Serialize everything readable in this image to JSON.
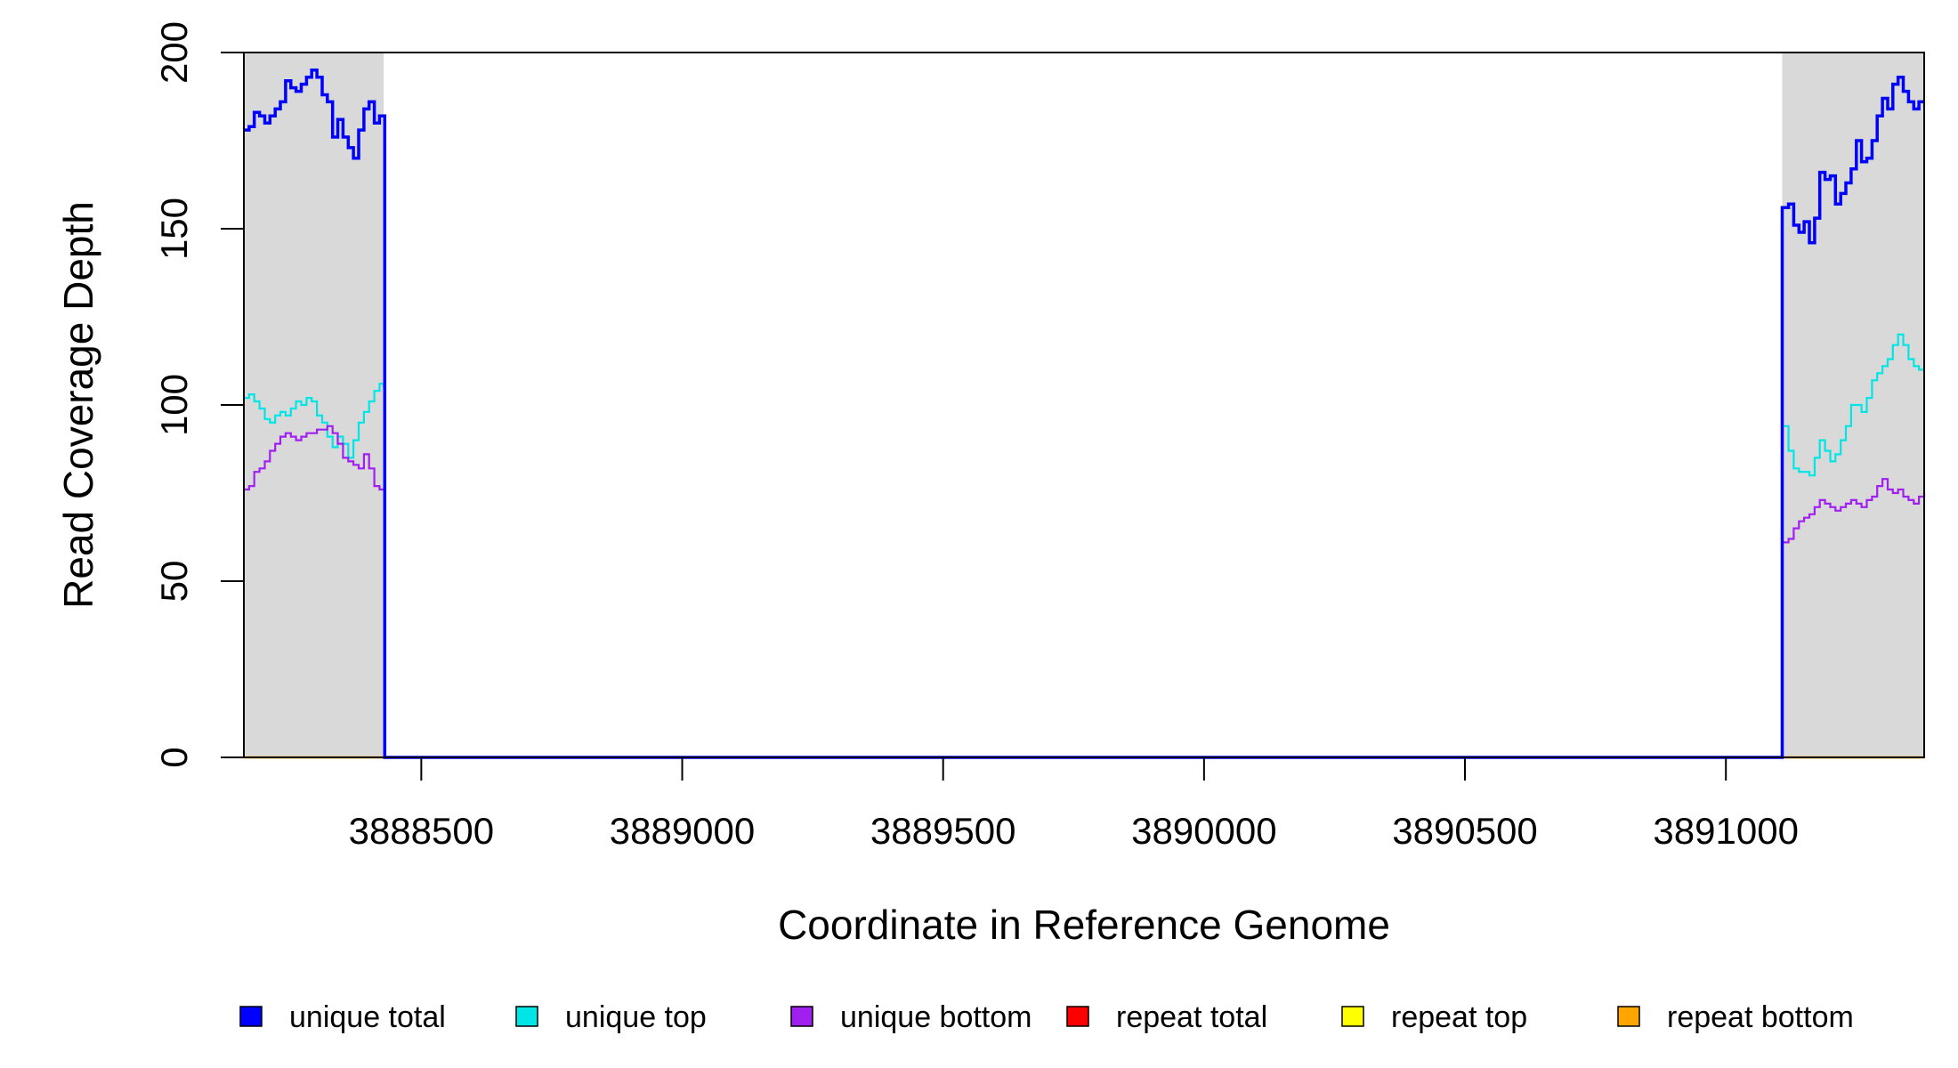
{
  "chart_data": {
    "type": "line",
    "title": "",
    "xlabel": "Coordinate in Reference Genome",
    "ylabel": "Read Coverage Depth",
    "xlim": [
      3888160,
      3891380
    ],
    "ylim": [
      0,
      200
    ],
    "x_ticks": [
      3888500,
      3889000,
      3889500,
      3890000,
      3890500,
      3891000
    ],
    "x_tick_labels": [
      "3888500",
      "3889000",
      "3889500",
      "3890000",
      "3890500",
      "3891000"
    ],
    "y_ticks": [
      0,
      50,
      100,
      150,
      200
    ],
    "y_tick_labels": [
      "0",
      "50",
      "100",
      "150",
      "200"
    ],
    "shaded_regions": [
      [
        3888160,
        3888428
      ],
      [
        3891108,
        3891380
      ]
    ],
    "shade_color": "#d9d9d9",
    "legend_position": "bottom",
    "series": [
      {
        "name": "unique total",
        "color": "#0000ff",
        "points": [
          [
            3888160,
            178
          ],
          [
            3888170,
            179
          ],
          [
            3888180,
            183
          ],
          [
            3888190,
            182
          ],
          [
            3888200,
            180
          ],
          [
            3888210,
            182
          ],
          [
            3888220,
            184
          ],
          [
            3888230,
            186
          ],
          [
            3888240,
            192
          ],
          [
            3888250,
            190
          ],
          [
            3888260,
            189
          ],
          [
            3888270,
            191
          ],
          [
            3888280,
            193
          ],
          [
            3888290,
            195
          ],
          [
            3888300,
            193
          ],
          [
            3888310,
            188
          ],
          [
            3888320,
            186
          ],
          [
            3888330,
            176
          ],
          [
            3888340,
            181
          ],
          [
            3888350,
            176
          ],
          [
            3888360,
            173
          ],
          [
            3888370,
            170
          ],
          [
            3888380,
            178
          ],
          [
            3888390,
            184
          ],
          [
            3888400,
            186
          ],
          [
            3888410,
            180
          ],
          [
            3888420,
            182
          ],
          [
            3888428,
            182
          ],
          [
            3888430,
            0
          ],
          [
            3891105,
            0
          ],
          [
            3891108,
            156
          ],
          [
            3891120,
            157
          ],
          [
            3891130,
            151
          ],
          [
            3891140,
            149
          ],
          [
            3891150,
            152
          ],
          [
            3891160,
            146
          ],
          [
            3891170,
            153
          ],
          [
            3891180,
            166
          ],
          [
            3891190,
            164
          ],
          [
            3891200,
            165
          ],
          [
            3891210,
            157
          ],
          [
            3891220,
            160
          ],
          [
            3891230,
            163
          ],
          [
            3891240,
            167
          ],
          [
            3891250,
            175
          ],
          [
            3891260,
            169
          ],
          [
            3891270,
            170
          ],
          [
            3891280,
            175
          ],
          [
            3891290,
            182
          ],
          [
            3891300,
            187
          ],
          [
            3891310,
            184
          ],
          [
            3891320,
            191
          ],
          [
            3891330,
            193
          ],
          [
            3891340,
            189
          ],
          [
            3891350,
            186
          ],
          [
            3891360,
            184
          ],
          [
            3891370,
            186
          ],
          [
            3891380,
            186
          ]
        ]
      },
      {
        "name": "unique top",
        "color": "#00e5e5",
        "points": [
          [
            3888160,
            102
          ],
          [
            3888170,
            103
          ],
          [
            3888180,
            101
          ],
          [
            3888190,
            99
          ],
          [
            3888200,
            96
          ],
          [
            3888210,
            95
          ],
          [
            3888220,
            97
          ],
          [
            3888230,
            98
          ],
          [
            3888240,
            97
          ],
          [
            3888250,
            99
          ],
          [
            3888260,
            101
          ],
          [
            3888270,
            100
          ],
          [
            3888280,
            102
          ],
          [
            3888290,
            101
          ],
          [
            3888300,
            97
          ],
          [
            3888310,
            95
          ],
          [
            3888320,
            91
          ],
          [
            3888330,
            88
          ],
          [
            3888340,
            91
          ],
          [
            3888350,
            89
          ],
          [
            3888360,
            85
          ],
          [
            3888370,
            90
          ],
          [
            3888380,
            95
          ],
          [
            3888390,
            98
          ],
          [
            3888400,
            101
          ],
          [
            3888410,
            104
          ],
          [
            3888420,
            106
          ],
          [
            3888428,
            105
          ],
          [
            3888430,
            0
          ],
          [
            3891105,
            0
          ],
          [
            3891108,
            94
          ],
          [
            3891120,
            87
          ],
          [
            3891130,
            82
          ],
          [
            3891140,
            81
          ],
          [
            3891150,
            81
          ],
          [
            3891160,
            80
          ],
          [
            3891170,
            85
          ],
          [
            3891180,
            90
          ],
          [
            3891190,
            87
          ],
          [
            3891200,
            84
          ],
          [
            3891210,
            86
          ],
          [
            3891220,
            90
          ],
          [
            3891230,
            94
          ],
          [
            3891240,
            100
          ],
          [
            3891250,
            100
          ],
          [
            3891260,
            98
          ],
          [
            3891270,
            102
          ],
          [
            3891280,
            107
          ],
          [
            3891290,
            109
          ],
          [
            3891300,
            111
          ],
          [
            3891310,
            113
          ],
          [
            3891320,
            117
          ],
          [
            3891330,
            120
          ],
          [
            3891340,
            117
          ],
          [
            3891350,
            113
          ],
          [
            3891360,
            111
          ],
          [
            3891370,
            110
          ],
          [
            3891380,
            110
          ]
        ]
      },
      {
        "name": "unique bottom",
        "color": "#a020f0",
        "points": [
          [
            3888160,
            76
          ],
          [
            3888170,
            77
          ],
          [
            3888180,
            81
          ],
          [
            3888190,
            82
          ],
          [
            3888200,
            84
          ],
          [
            3888210,
            87
          ],
          [
            3888220,
            89
          ],
          [
            3888230,
            91
          ],
          [
            3888240,
            92
          ],
          [
            3888250,
            91
          ],
          [
            3888260,
            90
          ],
          [
            3888270,
            91
          ],
          [
            3888280,
            92
          ],
          [
            3888290,
            92
          ],
          [
            3888300,
            93
          ],
          [
            3888310,
            93
          ],
          [
            3888320,
            94
          ],
          [
            3888330,
            92
          ],
          [
            3888340,
            89
          ],
          [
            3888350,
            85
          ],
          [
            3888360,
            84
          ],
          [
            3888370,
            83
          ],
          [
            3888380,
            82
          ],
          [
            3888390,
            86
          ],
          [
            3888400,
            82
          ],
          [
            3888410,
            77
          ],
          [
            3888420,
            76
          ],
          [
            3888428,
            76
          ],
          [
            3888430,
            0
          ],
          [
            3891105,
            0
          ],
          [
            3891108,
            61
          ],
          [
            3891120,
            62
          ],
          [
            3891130,
            65
          ],
          [
            3891140,
            67
          ],
          [
            3891150,
            68
          ],
          [
            3891160,
            69
          ],
          [
            3891170,
            71
          ],
          [
            3891180,
            73
          ],
          [
            3891190,
            72
          ],
          [
            3891200,
            71
          ],
          [
            3891210,
            70
          ],
          [
            3891220,
            71
          ],
          [
            3891230,
            72
          ],
          [
            3891240,
            73
          ],
          [
            3891250,
            72
          ],
          [
            3891260,
            71
          ],
          [
            3891270,
            73
          ],
          [
            3891280,
            74
          ],
          [
            3891290,
            77
          ],
          [
            3891300,
            79
          ],
          [
            3891310,
            76
          ],
          [
            3891320,
            75
          ],
          [
            3891330,
            76
          ],
          [
            3891340,
            74
          ],
          [
            3891350,
            73
          ],
          [
            3891360,
            72
          ],
          [
            3891370,
            74
          ],
          [
            3891380,
            75
          ]
        ]
      },
      {
        "name": "repeat total",
        "color": "#ff0000",
        "points": [
          [
            3888160,
            0
          ],
          [
            3891380,
            0
          ]
        ]
      },
      {
        "name": "repeat top",
        "color": "#ffff00",
        "points": [
          [
            3888160,
            0
          ],
          [
            3891380,
            0
          ]
        ]
      },
      {
        "name": "repeat bottom",
        "color": "#ffa500",
        "points": [
          [
            3888160,
            0
          ],
          [
            3891380,
            0
          ]
        ]
      }
    ]
  }
}
